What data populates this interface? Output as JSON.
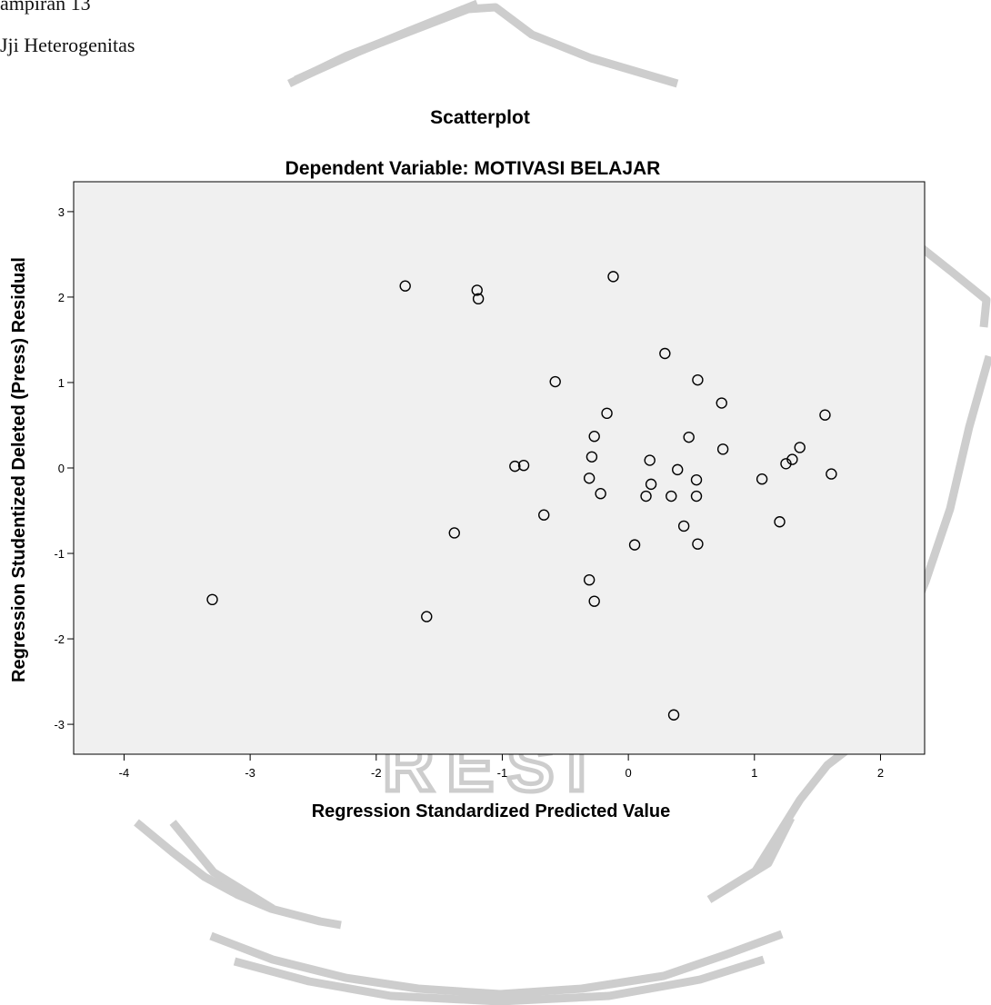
{
  "document": {
    "caption": "ampiran 13",
    "heading": "Jji Heterogenitas",
    "watermark_text": "RESI"
  },
  "chart_data": {
    "type": "scatter",
    "title": "Scatterplot",
    "subtitle": "Dependent Variable: MOTIVASI BELAJAR",
    "xlabel": "Regression Standardized Predicted Value",
    "ylabel": "Regression Studentized Deleted (Press) Residual",
    "xlim": [
      -4.4,
      2.35
    ],
    "ylim": [
      -3.35,
      3.35
    ],
    "xticks": [
      -4,
      -3,
      -2,
      -1,
      0,
      1,
      2
    ],
    "yticks": [
      -3,
      -2,
      -1,
      0,
      1,
      2,
      3
    ],
    "grid": false,
    "colors": {
      "plot_background": "#f0f0f0",
      "marker": "#000000",
      "watermark": "#cfcfcf"
    },
    "points": [
      {
        "x": -3.3,
        "y": -1.54
      },
      {
        "x": -1.77,
        "y": 2.13
      },
      {
        "x": -1.2,
        "y": 2.08
      },
      {
        "x": -1.19,
        "y": 1.98
      },
      {
        "x": -0.12,
        "y": 2.24
      },
      {
        "x": 0.29,
        "y": 1.34
      },
      {
        "x": -0.58,
        "y": 1.01
      },
      {
        "x": 0.55,
        "y": 1.03
      },
      {
        "x": 0.74,
        "y": 0.76
      },
      {
        "x": -0.17,
        "y": 0.64
      },
      {
        "x": 1.56,
        "y": 0.62
      },
      {
        "x": -0.27,
        "y": 0.37
      },
      {
        "x": 0.48,
        "y": 0.36
      },
      {
        "x": 0.75,
        "y": 0.22
      },
      {
        "x": 1.36,
        "y": 0.24
      },
      {
        "x": -0.29,
        "y": 0.13
      },
      {
        "x": 1.3,
        "y": 0.1
      },
      {
        "x": 0.17,
        "y": 0.09
      },
      {
        "x": 1.25,
        "y": 0.05
      },
      {
        "x": -0.9,
        "y": 0.02
      },
      {
        "x": -0.83,
        "y": 0.03
      },
      {
        "x": 0.39,
        "y": -0.02
      },
      {
        "x": 1.61,
        "y": -0.07
      },
      {
        "x": -0.31,
        "y": -0.12
      },
      {
        "x": 1.06,
        "y": -0.13
      },
      {
        "x": 0.54,
        "y": -0.14
      },
      {
        "x": 0.18,
        "y": -0.19
      },
      {
        "x": -0.22,
        "y": -0.3
      },
      {
        "x": 0.14,
        "y": -0.33
      },
      {
        "x": 0.34,
        "y": -0.33
      },
      {
        "x": 0.54,
        "y": -0.33
      },
      {
        "x": -0.67,
        "y": -0.55
      },
      {
        "x": 1.2,
        "y": -0.63
      },
      {
        "x": 0.44,
        "y": -0.68
      },
      {
        "x": -1.38,
        "y": -0.76
      },
      {
        "x": 0.05,
        "y": -0.9
      },
      {
        "x": 0.55,
        "y": -0.89
      },
      {
        "x": -0.31,
        "y": -1.31
      },
      {
        "x": -0.27,
        "y": -1.56
      },
      {
        "x": -1.6,
        "y": -1.74
      },
      {
        "x": 0.36,
        "y": -2.89
      }
    ]
  }
}
